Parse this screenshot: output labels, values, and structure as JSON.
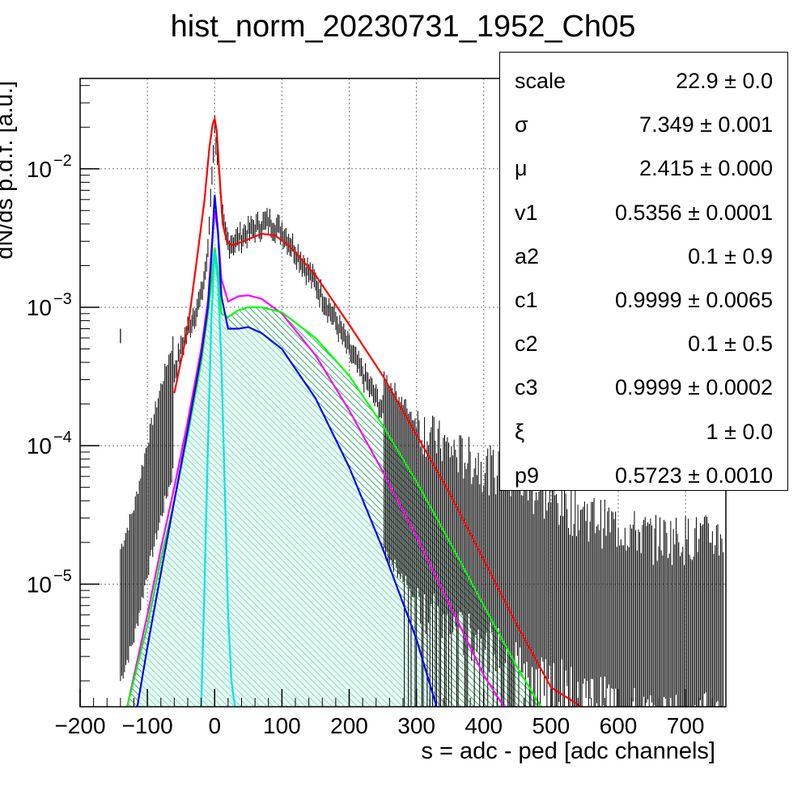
{
  "title": "hist_norm_20230731_1952_Ch05",
  "chart_data": {
    "type": "histogram+fit",
    "title": "hist_norm_20230731_1952_Ch05",
    "xlabel": "s = adc - ped [adc channels]",
    "ylabel": "dN/ds p.d.f. [a.u.]",
    "xlim": [
      -200,
      760
    ],
    "ylim": [
      1.3e-06,
      0.045
    ],
    "yscale": "log",
    "grid": true,
    "x_ticks": [
      -200,
      -100,
      0,
      100,
      200,
      300,
      400,
      500,
      600,
      700
    ],
    "x_tick_labels": [
      "−200",
      "−100",
      "0",
      "100",
      "200",
      "300",
      "400",
      "500",
      "600",
      "700"
    ],
    "y_ticks": [
      0.01,
      0.001,
      0.0001,
      1e-05
    ],
    "y_tick_labels": [
      {
        "mantissa": "10",
        "exp": "−2"
      },
      {
        "mantissa": "10",
        "exp": "−3"
      },
      {
        "mantissa": "10",
        "exp": "−4"
      },
      {
        "mantissa": "10",
        "exp": "−5"
      }
    ],
    "series": [
      {
        "color": "#000000",
        "kind": "data",
        "x": [
          -140,
          -120,
          -100,
          -80,
          -60,
          -40,
          -20,
          -10,
          -5,
          0,
          5,
          10,
          15,
          20,
          30,
          40,
          60,
          80,
          100,
          120,
          150,
          180,
          200,
          250,
          300,
          350,
          400,
          450,
          500,
          550,
          600,
          650,
          700,
          750
        ],
        "y": [
          1e-05,
          2e-05,
          6e-05,
          0.00015,
          0.00035,
          0.0007,
          0.0012,
          0.0025,
          0.008,
          0.02,
          0.012,
          0.005,
          0.0035,
          0.003,
          0.003,
          0.0033,
          0.0038,
          0.0042,
          0.0036,
          0.0026,
          0.0015,
          0.0008,
          0.0005,
          0.00018,
          8e-05,
          5e-05,
          4e-05,
          3e-05,
          2.2e-05,
          1.8e-05,
          1.4e-05,
          1.2e-05,
          1.2e-05,
          1.2e-05
        ]
      },
      {
        "color": "#ff0000",
        "kind": "fit",
        "x": [
          -60,
          -40,
          -25,
          -15,
          -8,
          -3,
          0,
          3,
          8,
          12,
          18,
          25,
          35,
          50,
          70,
          90,
          110,
          130,
          150,
          200,
          250,
          300,
          350,
          400,
          450,
          500,
          545
        ],
        "y": [
          0.00024,
          0.0007,
          0.0025,
          0.006,
          0.014,
          0.021,
          0.023,
          0.019,
          0.008,
          0.004,
          0.003,
          0.0028,
          0.0029,
          0.0031,
          0.0034,
          0.0033,
          0.0028,
          0.0022,
          0.0017,
          0.00075,
          0.00032,
          0.00012,
          4.5e-05,
          1.5e-05,
          5e-06,
          1.8e-06,
          1.3e-06
        ]
      },
      {
        "color": "#ff00ff",
        "kind": "component",
        "x": [
          -130,
          -100,
          -80,
          -60,
          -40,
          -20,
          -10,
          -5,
          0,
          5,
          10,
          20,
          35,
          50,
          70,
          100,
          150,
          200,
          250,
          300,
          350,
          400,
          430
        ],
        "y": [
          1.3e-06,
          6e-06,
          1.8e-05,
          5e-05,
          0.00015,
          0.0005,
          0.0011,
          0.0025,
          0.005,
          0.0035,
          0.0016,
          0.0011,
          0.0012,
          0.00122,
          0.00115,
          0.0009,
          0.00045,
          0.00018,
          6.5e-05,
          2.2e-05,
          7e-06,
          2.2e-06,
          1.3e-06
        ]
      },
      {
        "color": "#00ff00",
        "kind": "component",
        "x": [
          -130,
          -100,
          -80,
          -60,
          -40,
          -20,
          -10,
          -5,
          0,
          5,
          10,
          20,
          35,
          50,
          70,
          100,
          150,
          200,
          250,
          300,
          350,
          400,
          450,
          485
        ],
        "y": [
          1.3e-06,
          5e-06,
          1.5e-05,
          4e-05,
          0.00012,
          0.0004,
          0.0009,
          0.0015,
          0.0027,
          0.0018,
          0.0009,
          0.00085,
          0.00095,
          0.001,
          0.001,
          0.00092,
          0.0006,
          0.00032,
          0.00014,
          5.5e-05,
          2e-05,
          7e-06,
          2.5e-06,
          1.3e-06
        ]
      },
      {
        "color": "#0000ff",
        "kind": "component",
        "x": [
          -115,
          -100,
          -80,
          -60,
          -40,
          -20,
          -10,
          -5,
          0,
          5,
          10,
          20,
          35,
          50,
          70,
          100,
          150,
          200,
          250,
          300,
          330
        ],
        "y": [
          1.3e-06,
          3.5e-06,
          1.2e-05,
          4e-05,
          0.00013,
          0.00045,
          0.001,
          0.0022,
          0.0065,
          0.0035,
          0.0012,
          0.0007,
          0.0007,
          0.00072,
          0.00065,
          0.0005,
          0.00022,
          7e-05,
          1.8e-05,
          4e-06,
          1.3e-06
        ]
      },
      {
        "color": "#00e5e5",
        "kind": "component",
        "x": [
          -20,
          -15,
          -10,
          -5,
          0,
          5,
          10,
          15,
          20,
          25,
          30
        ],
        "y": [
          1.3e-06,
          1e-05,
          0.0001,
          0.0008,
          0.0025,
          0.0015,
          0.0004,
          5e-05,
          6e-06,
          2e-06,
          1.3e-06
        ]
      }
    ],
    "stats": [
      {
        "name": "scale",
        "value": "22.9 ± 0.0"
      },
      {
        "name": "σ",
        "value": "7.349 ± 0.001"
      },
      {
        "name": "μ",
        "value": "2.415 ± 0.000"
      },
      {
        "name": "v1",
        "value": "0.5356 ± 0.0001"
      },
      {
        "name": "a2",
        "value": "0.1 ± 0.9"
      },
      {
        "name": "c1",
        "value": "0.9999 ± 0.0065"
      },
      {
        "name": "c2",
        "value": "0.1 ± 0.5"
      },
      {
        "name": "c3",
        "value": "0.9999 ± 0.0002"
      },
      {
        "name": "ξ",
        "value": "1 ± 0.0"
      },
      {
        "name": "p9",
        "value": "0.5723 ± 0.0010"
      }
    ]
  }
}
